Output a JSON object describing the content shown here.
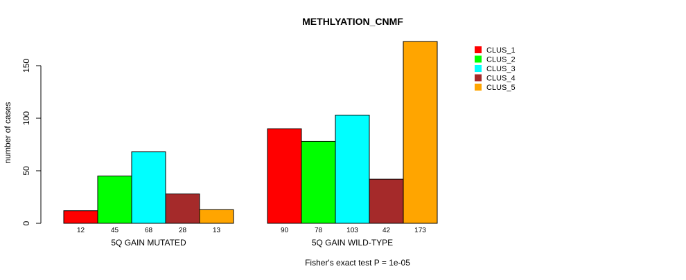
{
  "chart_data": {
    "type": "bar",
    "title": "METHLYATION_CNMF",
    "xlabel": "",
    "ylabel": "number of cases",
    "ylim": [
      0,
      150
    ],
    "yticks": [
      0,
      50,
      100,
      150
    ],
    "categories": [
      "5Q GAIN MUTATED",
      "5Q GAIN WILD-TYPE"
    ],
    "series": [
      {
        "name": "CLUS_1",
        "color": "#FF0000",
        "values": [
          12,
          90
        ]
      },
      {
        "name": "CLUS_2",
        "color": "#00FF00",
        "values": [
          45,
          78
        ]
      },
      {
        "name": "CLUS_3",
        "color": "#00FFFF",
        "values": [
          68,
          103
        ]
      },
      {
        "name": "CLUS_4",
        "color": "#A52A2A",
        "values": [
          28,
          42
        ]
      },
      {
        "name": "CLUS_5",
        "color": "#FFA500",
        "values": [
          13,
          173
        ]
      }
    ],
    "legend_position": "top-right",
    "grid": false,
    "footnote": "Fisher's exact test P = 1e-05"
  }
}
